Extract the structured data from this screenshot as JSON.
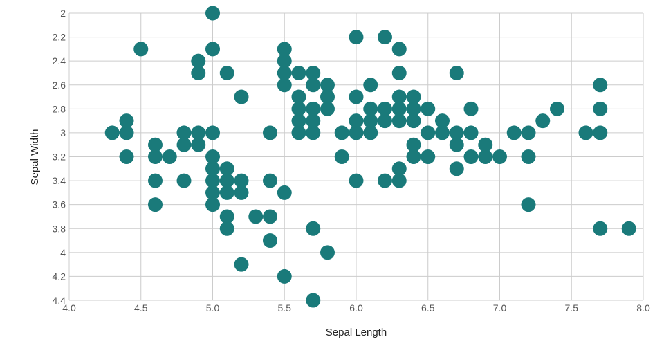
{
  "chart_data": {
    "type": "scatter",
    "xlabel": "Sepal Length",
    "ylabel": "Sepal Width",
    "xlim": [
      4.0,
      8.0
    ],
    "ylim": [
      2.0,
      4.4
    ],
    "y_axis_inverted": true,
    "grid": true,
    "marker_color": "#1a7a7a",
    "x_ticks": [
      "4.0",
      "4.5",
      "5.0",
      "5.5",
      "6.0",
      "6.5",
      "7.0",
      "7.5",
      "8.0"
    ],
    "y_ticks": [
      "2",
      "2.2",
      "2.4",
      "2.6",
      "2.8",
      "3",
      "3.2",
      "3.4",
      "3.6",
      "3.8",
      "4",
      "4.2",
      "4.4"
    ],
    "points": [
      [
        5.0,
        2.0
      ],
      [
        6.0,
        2.2
      ],
      [
        6.2,
        2.2
      ],
      [
        4.5,
        2.3
      ],
      [
        5.0,
        2.3
      ],
      [
        5.5,
        2.3
      ],
      [
        6.3,
        2.3
      ],
      [
        4.9,
        2.4
      ],
      [
        5.5,
        2.4
      ],
      [
        4.9,
        2.5
      ],
      [
        5.1,
        2.5
      ],
      [
        5.5,
        2.5
      ],
      [
        5.6,
        2.5
      ],
      [
        5.7,
        2.5
      ],
      [
        6.3,
        2.5
      ],
      [
        6.7,
        2.5
      ],
      [
        5.5,
        2.6
      ],
      [
        5.7,
        2.6
      ],
      [
        5.8,
        2.6
      ],
      [
        6.1,
        2.6
      ],
      [
        7.7,
        2.6
      ],
      [
        5.2,
        2.7
      ],
      [
        5.6,
        2.7
      ],
      [
        5.8,
        2.7
      ],
      [
        6.0,
        2.7
      ],
      [
        6.3,
        2.7
      ],
      [
        6.4,
        2.7
      ],
      [
        5.6,
        2.8
      ],
      [
        5.7,
        2.8
      ],
      [
        5.8,
        2.8
      ],
      [
        6.1,
        2.8
      ],
      [
        6.2,
        2.8
      ],
      [
        6.3,
        2.8
      ],
      [
        6.4,
        2.8
      ],
      [
        6.5,
        2.8
      ],
      [
        6.8,
        2.8
      ],
      [
        7.4,
        2.8
      ],
      [
        7.7,
        2.8
      ],
      [
        4.4,
        2.9
      ],
      [
        5.6,
        2.9
      ],
      [
        5.7,
        2.9
      ],
      [
        6.0,
        2.9
      ],
      [
        6.1,
        2.9
      ],
      [
        6.2,
        2.9
      ],
      [
        6.3,
        2.9
      ],
      [
        6.4,
        2.9
      ],
      [
        6.6,
        2.9
      ],
      [
        7.3,
        2.9
      ],
      [
        4.3,
        3.0
      ],
      [
        4.4,
        3.0
      ],
      [
        4.8,
        3.0
      ],
      [
        4.9,
        3.0
      ],
      [
        5.0,
        3.0
      ],
      [
        5.4,
        3.0
      ],
      [
        5.6,
        3.0
      ],
      [
        5.7,
        3.0
      ],
      [
        5.9,
        3.0
      ],
      [
        6.0,
        3.0
      ],
      [
        6.1,
        3.0
      ],
      [
        6.5,
        3.0
      ],
      [
        6.6,
        3.0
      ],
      [
        6.7,
        3.0
      ],
      [
        6.8,
        3.0
      ],
      [
        7.1,
        3.0
      ],
      [
        7.2,
        3.0
      ],
      [
        7.6,
        3.0
      ],
      [
        7.7,
        3.0
      ],
      [
        4.6,
        3.1
      ],
      [
        4.8,
        3.1
      ],
      [
        4.9,
        3.1
      ],
      [
        6.4,
        3.1
      ],
      [
        6.7,
        3.1
      ],
      [
        6.9,
        3.1
      ],
      [
        4.4,
        3.2
      ],
      [
        4.6,
        3.2
      ],
      [
        4.7,
        3.2
      ],
      [
        5.0,
        3.2
      ],
      [
        5.9,
        3.2
      ],
      [
        6.4,
        3.2
      ],
      [
        6.5,
        3.2
      ],
      [
        6.8,
        3.2
      ],
      [
        6.9,
        3.2
      ],
      [
        7.0,
        3.2
      ],
      [
        7.2,
        3.2
      ],
      [
        5.0,
        3.3
      ],
      [
        5.1,
        3.3
      ],
      [
        6.3,
        3.3
      ],
      [
        6.7,
        3.3
      ],
      [
        4.6,
        3.4
      ],
      [
        4.8,
        3.4
      ],
      [
        5.0,
        3.4
      ],
      [
        5.1,
        3.4
      ],
      [
        5.2,
        3.4
      ],
      [
        5.4,
        3.4
      ],
      [
        6.0,
        3.4
      ],
      [
        6.2,
        3.4
      ],
      [
        6.3,
        3.4
      ],
      [
        5.0,
        3.5
      ],
      [
        5.1,
        3.5
      ],
      [
        5.2,
        3.5
      ],
      [
        5.5,
        3.5
      ],
      [
        4.6,
        3.6
      ],
      [
        5.0,
        3.6
      ],
      [
        7.2,
        3.6
      ],
      [
        5.1,
        3.7
      ],
      [
        5.3,
        3.7
      ],
      [
        5.4,
        3.7
      ],
      [
        5.1,
        3.8
      ],
      [
        5.7,
        3.8
      ],
      [
        7.7,
        3.8
      ],
      [
        7.9,
        3.8
      ],
      [
        5.4,
        3.9
      ],
      [
        5.8,
        4.0
      ],
      [
        5.2,
        4.1
      ],
      [
        5.5,
        4.2
      ],
      [
        5.7,
        4.4
      ]
    ]
  }
}
